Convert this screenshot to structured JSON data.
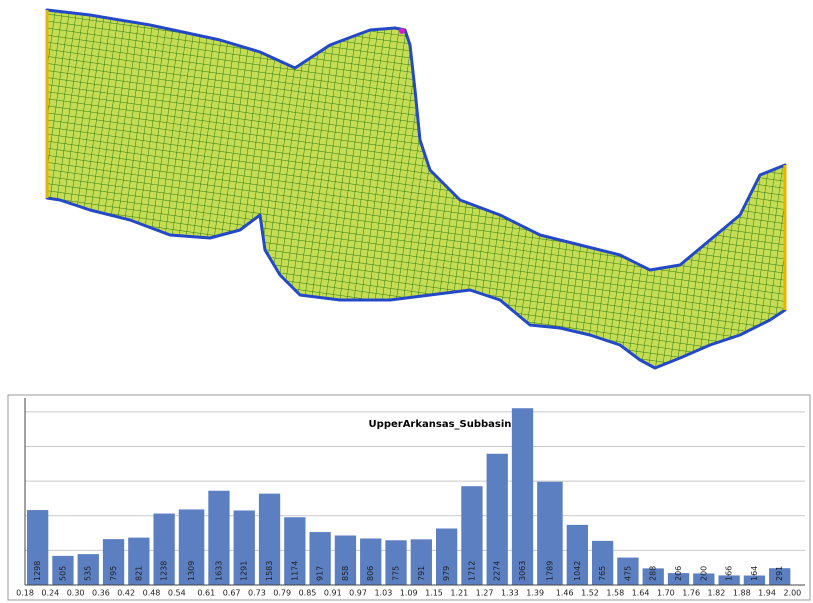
{
  "chart_data": {
    "type": "histogram",
    "title": "UpperArkansas_Subbasin",
    "bins": [
      0.18,
      0.24,
      0.3,
      0.36,
      0.42,
      0.48,
      0.54,
      0.61,
      0.67,
      0.73,
      0.79,
      0.85,
      0.91,
      0.97,
      1.03,
      1.09,
      1.15,
      1.21,
      1.27,
      1.33,
      1.39,
      1.46,
      1.52,
      1.58,
      1.64,
      1.7,
      1.76,
      1.82,
      1.88,
      1.94,
      2.0
    ],
    "values": [
      1298,
      505,
      535,
      795,
      821,
      1238,
      1309,
      1633,
      1291,
      1583,
      1174,
      917,
      858,
      806,
      775,
      791,
      979,
      1712,
      2274,
      3063,
      1789,
      1042,
      765,
      475,
      288,
      206,
      200,
      166,
      164,
      291
    ],
    "color": "#5b7fc1",
    "xlim": [
      0.18,
      2.03
    ],
    "xticks": [
      0.18,
      0.24,
      {
        "value": 0.3,
        "label": "0.30"
      },
      0.36,
      0.42,
      0.48,
      0.54,
      0.61,
      0.67,
      0.73,
      0.79,
      0.85,
      0.91,
      0.97,
      1.03,
      1.09,
      1.15,
      1.21,
      1.27,
      1.33,
      1.39,
      1.46,
      1.52,
      1.58,
      1.64,
      {
        "value": 1.7,
        "label": "1.70"
      },
      1.76,
      1.82,
      1.88,
      1.94,
      {
        "value": 2.0,
        "label": "2.00"
      }
    ],
    "ylim": [
      0,
      3240
    ],
    "yticks": [
      0,
      600,
      1200,
      1800,
      2400,
      3000
    ],
    "grid": true
  }
}
